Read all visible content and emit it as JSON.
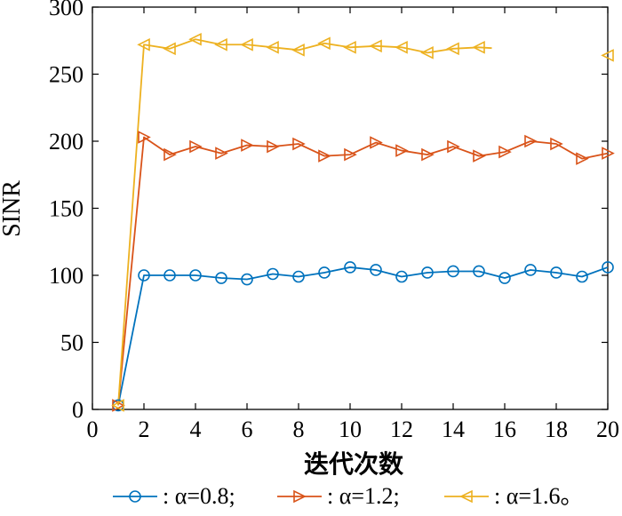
{
  "chart_data": {
    "type": "line",
    "xlabel": "迭代次数",
    "ylabel": "SINR",
    "xlim": [
      0,
      20
    ],
    "ylim": [
      0,
      300
    ],
    "xticks": [
      0,
      2,
      4,
      6,
      8,
      10,
      12,
      14,
      16,
      18,
      20
    ],
    "yticks": [
      0,
      50,
      100,
      150,
      200,
      250,
      300
    ],
    "grid": false,
    "legend_position": "bottom",
    "series": [
      {
        "name": "α=0.8",
        "legend_text": ": α=0.8;",
        "color": "#0072BD",
        "marker": "circle",
        "x": [
          1,
          2,
          3,
          4,
          5,
          6,
          7,
          8,
          9,
          10,
          11,
          12,
          13,
          14,
          15,
          16,
          17,
          18,
          19,
          20
        ],
        "values": [
          3,
          100,
          100,
          100,
          98,
          97,
          101,
          99,
          102,
          106,
          104,
          99,
          102,
          103,
          103,
          98,
          104,
          102,
          99,
          106
        ]
      },
      {
        "name": "α=1.2",
        "legend_text": ": α=1.2;",
        "color": "#D95319",
        "marker": "triangle-right",
        "x": [
          1,
          2,
          3,
          4,
          5,
          6,
          7,
          8,
          9,
          10,
          11,
          12,
          13,
          14,
          15,
          16,
          17,
          18,
          19,
          20
        ],
        "values": [
          3,
          203,
          190,
          196,
          191,
          197,
          196,
          198,
          189,
          190,
          199,
          193,
          190,
          196,
          189,
          192,
          200,
          198,
          187,
          191
        ]
      },
      {
        "name": "α=1.6",
        "legend_text": ": α=1.6。",
        "color": "#EDB120",
        "marker": "triangle-left",
        "x": [
          1,
          2,
          3,
          4,
          5,
          6,
          7,
          8,
          9,
          10,
          11,
          12,
          13,
          14,
          15,
          20
        ],
        "values": [
          3,
          272,
          269,
          276,
          272,
          272,
          270,
          268,
          273,
          270,
          271,
          270,
          266,
          269,
          270,
          264
        ],
        "line_ends_at_x": 15.5
      }
    ]
  }
}
